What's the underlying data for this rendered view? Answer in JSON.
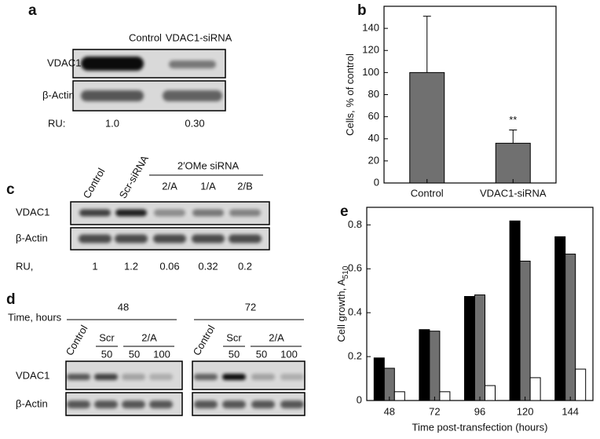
{
  "blots": {
    "a": {
      "panel": "a",
      "columns": [
        "Control",
        "VDAC1-siRNA"
      ],
      "rows": [
        "VDAC1",
        "β-Actin"
      ],
      "ru_label": "RU:",
      "ru": [
        "1.0",
        "0.30"
      ]
    },
    "c": {
      "panel": "c",
      "columns": [
        "Control",
        "Scr-siRNA"
      ],
      "group": "2′OMe siRNA",
      "group_columns": [
        "2/A",
        "1/A",
        "2/B"
      ],
      "rows": [
        "VDAC1",
        "β-Actin"
      ],
      "ru_label": "RU,",
      "ru": [
        "1",
        "1.2",
        "0.06",
        "0.32",
        "0.2"
      ]
    },
    "d": {
      "panel": "d",
      "time_label": "Time, hours",
      "rows": [
        "VDAC1",
        "β-Actin"
      ],
      "groups": [
        {
          "time": "48",
          "headers": [
            "Control",
            "Scr",
            "2/A"
          ],
          "doses": [
            "50",
            "50",
            "100"
          ]
        },
        {
          "time": "72",
          "headers": [
            "Control",
            "Scr",
            "2/A"
          ],
          "doses": [
            "50",
            "50",
            "100"
          ]
        }
      ]
    }
  },
  "chart_data": [
    {
      "type": "bar",
      "panel": "b",
      "ylabel": "Cells, % of control",
      "categories": [
        "Control",
        "VDAC1-siRNA"
      ],
      "values": [
        100,
        36
      ],
      "errors": [
        51,
        12
      ],
      "color": "#707070",
      "annotation": "**",
      "ylim": [
        0,
        160
      ],
      "yticks": [
        0,
        20,
        40,
        60,
        80,
        100,
        120,
        140
      ]
    },
    {
      "type": "grouped-bar",
      "panel": "e",
      "ylabel": "Cell growth, A",
      "ylabel_subscript": "510",
      "xlabel": "Time post-transfection (hours)",
      "categories": [
        "48",
        "72",
        "96",
        "120",
        "144"
      ],
      "series": [
        {
          "color": "#000000",
          "values": [
            0.194,
            0.323,
            0.474,
            0.818,
            0.746
          ]
        },
        {
          "color": "#707070",
          "values": [
            0.147,
            0.316,
            0.481,
            0.635,
            0.667
          ]
        },
        {
          "color": "#ffffff",
          "values": [
            0.04,
            0.04,
            0.068,
            0.104,
            0.143
          ]
        }
      ],
      "ylim": [
        0,
        0.88
      ],
      "yticks": [
        0,
        0.2,
        0.4,
        0.6,
        0.8
      ]
    }
  ]
}
